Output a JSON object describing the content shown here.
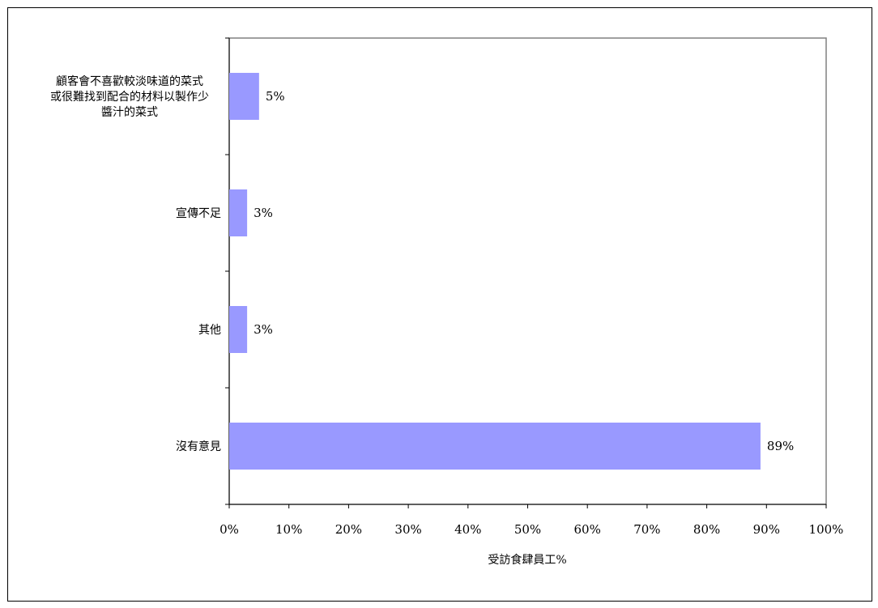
{
  "chart_data": {
    "type": "bar",
    "orientation": "horizontal",
    "categories": [
      [
        "顧客會不喜歡較淡味道的菜式",
        "或很難找到配合的材料以製作少",
        "醬汁的菜式"
      ],
      [
        "宣傳不足"
      ],
      [
        "其他"
      ],
      [
        "沒有意見"
      ]
    ],
    "values": [
      5,
      3,
      3,
      89
    ],
    "data_labels": [
      "5%",
      "3%",
      "3%",
      "89%"
    ],
    "xlim": [
      0,
      100
    ],
    "x_ticks": [
      0,
      10,
      20,
      30,
      40,
      50,
      60,
      70,
      80,
      90,
      100
    ],
    "x_tick_labels": [
      "0%",
      "10%",
      "20%",
      "30%",
      "40%",
      "50%",
      "60%",
      "70%",
      "80%",
      "90%",
      "100%"
    ],
    "xlabel": "受訪食肆員工%",
    "ylabel": "",
    "title": "",
    "grid": false,
    "legend": "none",
    "bar_color": "#9999ff",
    "plot_border_color": "#808080"
  }
}
